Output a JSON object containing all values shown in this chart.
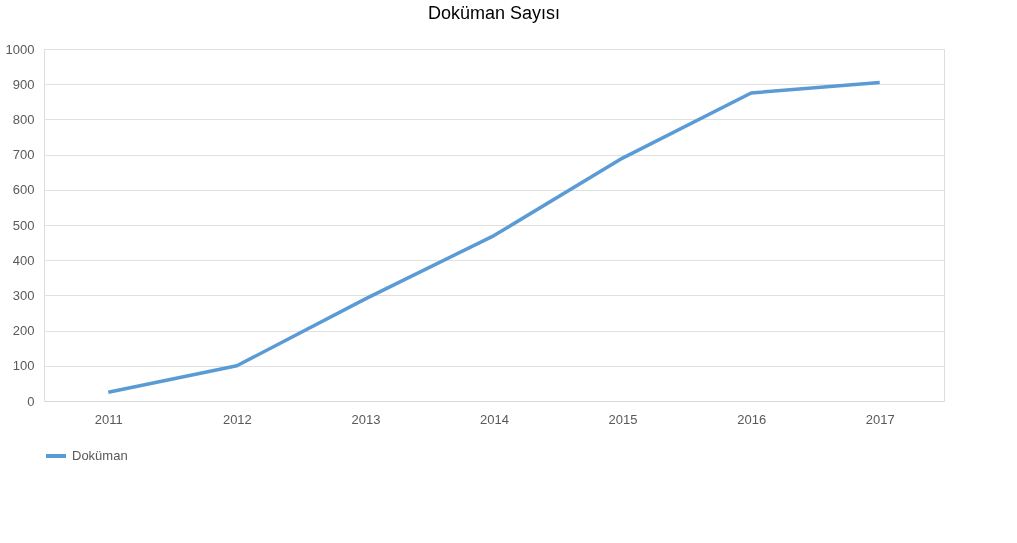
{
  "chart_data": {
    "type": "line",
    "title": "Doküman Sayısı",
    "categories": [
      "2011",
      "2012",
      "2013",
      "2014",
      "2015",
      "2016",
      "2017"
    ],
    "series": [
      {
        "name": "Doküman",
        "color": "#5b9bd5",
        "values": [
          25,
          100,
          290,
          470,
          690,
          875,
          905
        ]
      }
    ],
    "ylim": [
      0,
      1000
    ],
    "yticks": [
      0,
      100,
      200,
      300,
      400,
      500,
      600,
      700,
      800,
      900,
      1000
    ],
    "grid": "y",
    "legend": "bottom",
    "marker": "none",
    "line_style": "solid"
  }
}
